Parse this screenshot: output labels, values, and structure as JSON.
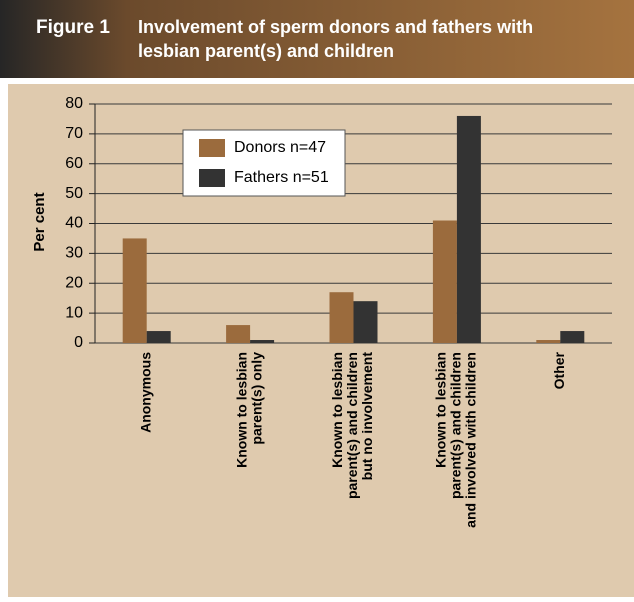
{
  "figure_label": "Figure 1",
  "chart_data": {
    "type": "bar",
    "title": [
      "Involvement of sperm donors and fathers with",
      "lesbian parent(s) and children"
    ],
    "y_label": "Per cent",
    "categories": [
      [
        "Anonymous"
      ],
      [
        "Known to lesbian",
        "parent(s) only"
      ],
      [
        "Known to lesbian",
        "parent(s) and children",
        "but no involvement"
      ],
      [
        "Known to lesbian",
        "parent(s) and children",
        "and involved with children"
      ],
      [
        "Other"
      ]
    ],
    "series": [
      {
        "name": "Donors n=47",
        "color": "#9b6b3d",
        "values": [
          35,
          6,
          17,
          41,
          1
        ]
      },
      {
        "name": "Fathers n=51",
        "color": "#333333",
        "values": [
          4,
          1,
          14,
          76,
          4
        ]
      }
    ],
    "ylim": [
      0,
      80
    ],
    "yticks": [
      0,
      10,
      20,
      30,
      40,
      50,
      60,
      70,
      80
    ],
    "grid": true,
    "legend": "top-left"
  }
}
